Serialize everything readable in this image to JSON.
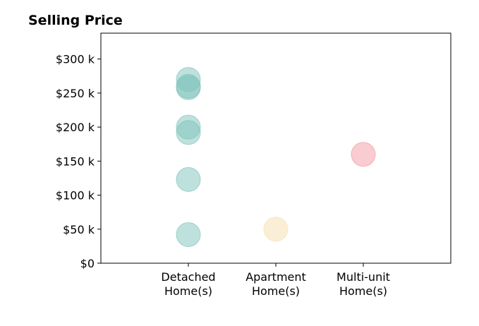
{
  "chart_data": {
    "type": "scatter",
    "title": "Selling Price",
    "xlabel": "",
    "ylabel": "",
    "categories": [
      [
        "Detached",
        "Home(s)"
      ],
      [
        "Apartment",
        "Home(s)"
      ],
      [
        "Multi-unit",
        "Home(s)"
      ]
    ],
    "y_ticks": [
      {
        "value": 0,
        "label": "$0"
      },
      {
        "value": 50000,
        "label": "$50 k"
      },
      {
        "value": 100000,
        "label": "$100 k"
      },
      {
        "value": 150000,
        "label": "$150 k"
      },
      {
        "value": 200000,
        "label": "$200 k"
      },
      {
        "value": 250000,
        "label": "$250 k"
      },
      {
        "value": 300000,
        "label": "$300 k"
      }
    ],
    "ylim": [
      0,
      338000
    ],
    "xlim": [
      -1,
      3
    ],
    "grid": false,
    "legend": "none",
    "points": [
      {
        "category": 0,
        "value": 270000,
        "color": "#7fc4bb"
      },
      {
        "category": 0,
        "value": 260000,
        "color": "#7fc4bb"
      },
      {
        "category": 0,
        "value": 258000,
        "color": "#7fc4bb"
      },
      {
        "category": 0,
        "value": 200000,
        "color": "#7fc4bb"
      },
      {
        "category": 0,
        "value": 192000,
        "color": "#7fc4bb"
      },
      {
        "category": 0,
        "value": 123000,
        "color": "#7fc4bb"
      },
      {
        "category": 0,
        "value": 42000,
        "color": "#7fc4bb"
      },
      {
        "category": 1,
        "value": 50000,
        "color": "#f5dfae"
      },
      {
        "category": 2,
        "value": 160000,
        "color": "#f29aa3"
      }
    ],
    "colors": {
      "detached": "#7fc4bb",
      "apartment": "#f5dfae",
      "multi_unit": "#f29aa3"
    }
  }
}
